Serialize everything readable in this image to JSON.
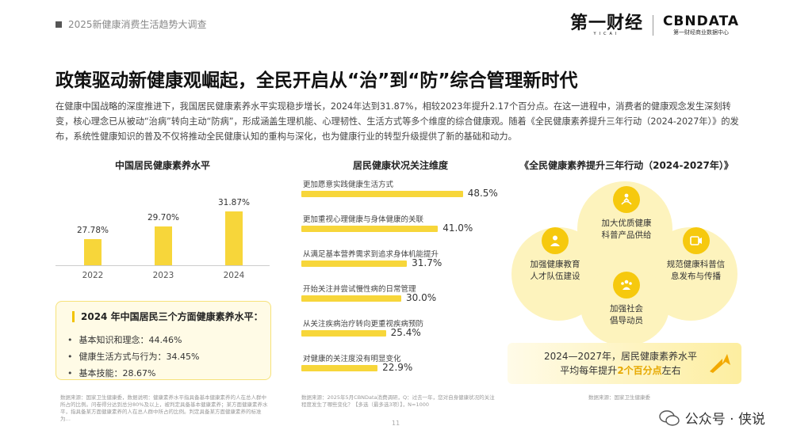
{
  "header": {
    "report_tag": "2025新健康消费生活趋势大调查"
  },
  "logos": {
    "diyi": "第一财经",
    "diyi_sub": "YICAI",
    "cbn": "CBNDATA",
    "cbn_sub": "第一财经商业数据中心"
  },
  "title": "政策驱动新健康观崛起，全民开启从“治”到“防”综合管理新时代",
  "intro": "在健康中国战略的深度推进下，我国居民健康素养水平实现稳步增长，2024年达到31.87%，相较2023年提升2.17个百分点。在这一进程中，消费者的健康观念发生深刻转变，核心理念已从被动“治病”转向主动“防病”，形成涵盖生理机能、心理韧性、生活方式等多个维度的综合健康观。随着《全民健康素养提升三年行动（2024-2027年）》的发布，系统性健康知识的普及不仅将推动全民健康认知的重构与深化，也为健康行业的转型升级提供了新的基础和动力。",
  "chart_data": [
    {
      "type": "bar",
      "title": "中国居民健康素养水平",
      "categories": [
        "2022",
        "2023",
        "2024"
      ],
      "values": [
        27.78,
        29.7,
        31.87
      ],
      "value_labels": [
        "27.78%",
        "29.70%",
        "31.87%"
      ],
      "color": "#f7d63a"
    },
    {
      "type": "bar",
      "orientation": "horizontal",
      "title": "居民健康状况关注维度",
      "categories": [
        "更加愿意实践健康生活方式",
        "更加重视心理健康与身体健康的关联",
        "从满足基本营养需求到追求身体机能提升",
        "开始关注并尝试慢性病的日常管理",
        "从关注疾病治疗转向更重视疾病预防",
        "对健康的关注度没有明显变化"
      ],
      "values": [
        48.5,
        41.0,
        31.7,
        30.0,
        25.4,
        22.9
      ],
      "value_labels": [
        "48.5%",
        "41.0%",
        "31.7%",
        "30.0%",
        "25.4%",
        "22.9%"
      ],
      "color": "#f7d63a"
    }
  ],
  "literacy_card": {
    "title": "2024 年中国居民三个方面健康素养水平：",
    "items": [
      "基本知识和理念：44.46%",
      "健康生活方式与行为：34.45%",
      "基本技能：28.67%"
    ]
  },
  "action_plan": {
    "title": "《全民健康素养提升三年行动（2024-2027年）》",
    "nodes": {
      "top": {
        "line1": "加大优质健康",
        "line2": "科普产品供给",
        "icon": "meditation-icon"
      },
      "left": {
        "line1": "加强健康教育",
        "line2": "人才队伍建设",
        "icon": "person-icon"
      },
      "right": {
        "line1": "规范健康科普信",
        "line2": "息发布与传播",
        "icon": "video-icon"
      },
      "bottom": {
        "line1": "加强社会",
        "line2": "倡导动员",
        "icon": "group-icon"
      }
    },
    "banner": {
      "line1": "2024—2027年，居民健康素养水平",
      "prefix": "平均每年提升",
      "highlight": "2个百分点",
      "suffix": "左右"
    }
  },
  "sources": {
    "left": "数据来源：国家卫生健康委，数据说明：健康素养水平指具备基本健康素养的人在总人群中所占的比例。问卷得分达到总分80%及以上，被判定具备基本健康素养；某方面健康素养水平，指具备某方面健康素养的人在总人群中所占的比例。判定具备某方面健康素养的标准为…",
    "middle": "数据来源：2025年5月CBNData消费调研，Q：过去一年，您对自身健康状况的关注程度发生了哪些变化？【多选（最多选3项）】，N=1000",
    "right": "数据来源：国家卫生健康委"
  },
  "page_number": "11",
  "watermark": "公众号 · 侠说",
  "colors": {
    "accent": "#f7d63a",
    "highlight": "#e6a800"
  }
}
